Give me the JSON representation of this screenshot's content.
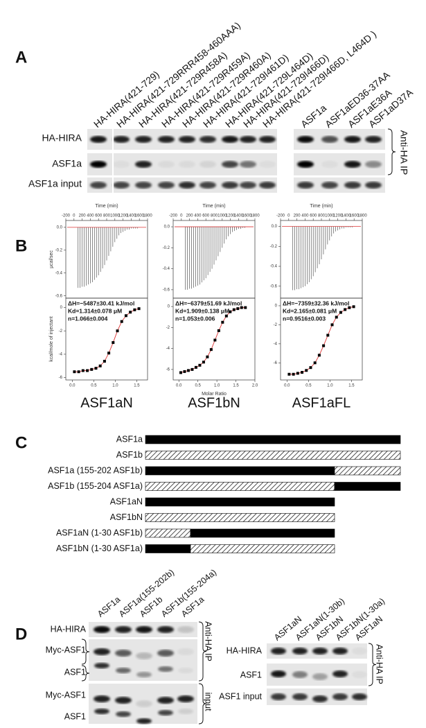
{
  "panels": {
    "A": {
      "label": "A",
      "left_lanes": [
        "HA-HIRA(421-729)",
        "HA-HIRA(421-729RRR458-460AAA)",
        "HA-HIRA(421-729R458A)",
        "HA-HIRA(421-729R459A)",
        "HA-HIRA(421-729R460A)",
        "HA-HIRA(421-729I461D)",
        "HA-HIRA(421-729L464D)",
        "HA-HIRA(421-729I466D)",
        "HA-HIRA(421-729I466D, L464D )"
      ],
      "right_lanes": [
        "ASF1a",
        "ASF1aED36-37AA",
        "ASF1aE36A",
        "ASF1aD37A"
      ],
      "rows": [
        "HA-HIRA",
        "ASF1a",
        "ASF1a input"
      ],
      "side": "Anti-HA IP"
    },
    "B": {
      "label": "B",
      "time_axis": "Time (min)",
      "ucal_axis": "µcal/sec",
      "kcal_axis": "kcal/mole of injectant",
      "ratio_axis": "Molar Ratio",
      "experiments": [
        {
          "name": "ASF1aN",
          "dH": "ΔH=−5487±30.41 kJ/mol",
          "kd": "Kd=1.314±0.078 μM",
          "n": "n=1.066±0.004",
          "time_lim": [
            -200,
            1800
          ],
          "time_ticks": [
            -200,
            0,
            200,
            400,
            600,
            800,
            1000,
            1200,
            1400,
            1600,
            1800
          ],
          "ucal_lim": [
            -0.62,
            0.06
          ],
          "ucal_ticks": [
            {
              "value": 0,
              "label": "0.0"
            },
            {
              "value": -0.2,
              "label": "-0.2"
            },
            {
              "value": -0.4,
              "label": "-0.4"
            },
            {
              "value": -0.6,
              "label": "-0.6"
            }
          ],
          "kcal_lim": [
            -6.2,
            0.8
          ],
          "kcal_ticks": [
            0,
            -2,
            -4,
            -6
          ],
          "ratio_lim": [
            -0.15,
            1.75
          ],
          "ratio_ticks": [
            {
              "value": 0,
              "label": "0.0"
            },
            {
              "value": 0.5,
              "label": "0.5"
            },
            {
              "value": 1,
              "label": "1.0"
            },
            {
              "value": 1.5,
              "label": "1.5"
            }
          ],
          "peaks": {
            "t": [
              100,
              150,
              200,
              250,
              300,
              350,
              400,
              450,
              500,
              550,
              600,
              650,
              700,
              750,
              800,
              850,
              900,
              950,
              1000,
              1050,
              1100,
              1150,
              1200,
              1250,
              1300,
              1350,
              1400,
              1450,
              1500,
              1550
            ],
            "v": [
              -0.53,
              -0.53,
              -0.52,
              -0.52,
              -0.51,
              -0.5,
              -0.49,
              -0.48,
              -0.46,
              -0.44,
              -0.42,
              -0.39,
              -0.36,
              -0.33,
              -0.29,
              -0.25,
              -0.21,
              -0.17,
              -0.13,
              -0.1,
              -0.07,
              -0.05,
              -0.04,
              -0.03,
              -0.02,
              -0.02,
              -0.01,
              -0.01,
              -0.01,
              -0.01
            ]
          },
          "fit": {
            "x": [
              0.05,
              0.15,
              0.25,
              0.35,
              0.45,
              0.55,
              0.65,
              0.75,
              0.85,
              0.95,
              1.05,
              1.15,
              1.25,
              1.35,
              1.45,
              1.55
            ],
            "y": [
              -5.5,
              -5.5,
              -5.4,
              -5.4,
              -5.3,
              -5.2,
              -5.0,
              -4.6,
              -3.9,
              -3.0,
              -2.0,
              -1.2,
              -0.7,
              -0.4,
              -0.2,
              -0.1
            ]
          }
        },
        {
          "name": "ASF1bN",
          "dH": "ΔH=−6379±51.69 kJ/mol",
          "kd": "Kd=1.909±0.138 μM",
          "n": "n=1.053±0.006",
          "time_lim": [
            -200,
            1800
          ],
          "time_ticks": [
            -200,
            0,
            200,
            400,
            600,
            800,
            1000,
            1200,
            1400,
            1600,
            1800
          ],
          "ucal_lim": [
            -0.68,
            0.06
          ],
          "ucal_ticks": [
            {
              "value": 0,
              "label": "0.0"
            },
            {
              "value": -0.2,
              "label": "-0.2"
            },
            {
              "value": -0.4,
              "label": "-0.4"
            },
            {
              "value": -0.6,
              "label": "-0.6"
            }
          ],
          "kcal_lim": [
            -7,
            0.8
          ],
          "kcal_ticks": [
            0,
            -2,
            -4,
            -6
          ],
          "ratio_lim": [
            -0.15,
            2.0
          ],
          "ratio_ticks": [
            {
              "value": 0,
              "label": "0.0"
            },
            {
              "value": 0.5,
              "label": "0.5"
            },
            {
              "value": 1,
              "label": "1.0"
            },
            {
              "value": 1.5,
              "label": "1.5"
            },
            {
              "value": 2,
              "label": "2.0"
            }
          ],
          "peaks": {
            "t": [
              100,
              150,
              200,
              250,
              300,
              350,
              400,
              450,
              500,
              550,
              600,
              650,
              700,
              750,
              800,
              850,
              900,
              950,
              1000,
              1050,
              1100,
              1150,
              1200,
              1250,
              1300,
              1350,
              1400,
              1450,
              1500,
              1550
            ],
            "v": [
              -0.6,
              -0.6,
              -0.59,
              -0.59,
              -0.58,
              -0.57,
              -0.56,
              -0.55,
              -0.53,
              -0.51,
              -0.49,
              -0.46,
              -0.43,
              -0.4,
              -0.36,
              -0.32,
              -0.28,
              -0.24,
              -0.2,
              -0.16,
              -0.12,
              -0.09,
              -0.07,
              -0.05,
              -0.04,
              -0.03,
              -0.02,
              -0.02,
              -0.01,
              -0.01
            ]
          },
          "fit": {
            "x": [
              0.05,
              0.15,
              0.25,
              0.35,
              0.45,
              0.55,
              0.65,
              0.75,
              0.85,
              0.95,
              1.05,
              1.15,
              1.25,
              1.35,
              1.45,
              1.55,
              1.65,
              1.75
            ],
            "y": [
              -6.3,
              -6.2,
              -6.1,
              -6.0,
              -5.8,
              -5.6,
              -5.3,
              -4.8,
              -4.1,
              -3.2,
              -2.3,
              -1.5,
              -0.9,
              -0.5,
              -0.3,
              -0.2,
              -0.1,
              -0.1
            ]
          }
        },
        {
          "name": "ASF1aFL",
          "dH": "ΔH=−7359±32.36 kJ/mol",
          "kd": "Kd=2.165±0.081 μM",
          "n": "n=0.9516±0.003",
          "time_lim": [
            -200,
            1800
          ],
          "time_ticks": [
            -200,
            0,
            200,
            400,
            600,
            800,
            1000,
            1200,
            1400,
            1600,
            1800
          ],
          "ucal_lim": [
            -0.72,
            0.06
          ],
          "ucal_ticks": [
            {
              "value": 0,
              "label": "0.0"
            },
            {
              "value": -0.2,
              "label": "-0.2"
            },
            {
              "value": -0.4,
              "label": "-0.4"
            },
            {
              "value": -0.6,
              "label": "-0.6"
            }
          ],
          "kcal_lim": [
            -7.8,
            0.8
          ],
          "kcal_ticks": [
            0,
            -2,
            -4,
            -6
          ],
          "ratio_lim": [
            -0.15,
            1.75
          ],
          "ratio_ticks": [
            {
              "value": 0,
              "label": "0.0"
            },
            {
              "value": 0.5,
              "label": "0.5"
            },
            {
              "value": 1,
              "label": "1.0"
            },
            {
              "value": 1.5,
              "label": "1.5"
            }
          ],
          "peaks": {
            "t": [
              100,
              150,
              200,
              250,
              300,
              350,
              400,
              450,
              500,
              550,
              600,
              650,
              700,
              750,
              800,
              850,
              900,
              950,
              1000,
              1050,
              1100,
              1150,
              1200,
              1250,
              1300,
              1350,
              1400,
              1450,
              1500,
              1550
            ],
            "v": [
              -0.64,
              -0.64,
              -0.63,
              -0.63,
              -0.62,
              -0.61,
              -0.6,
              -0.58,
              -0.56,
              -0.53,
              -0.5,
              -0.46,
              -0.42,
              -0.38,
              -0.33,
              -0.28,
              -0.23,
              -0.18,
              -0.14,
              -0.1,
              -0.07,
              -0.05,
              -0.04,
              -0.03,
              -0.02,
              -0.02,
              -0.01,
              -0.01,
              -0.01,
              -0.01
            ]
          },
          "fit": {
            "x": [
              0.05,
              0.15,
              0.25,
              0.35,
              0.45,
              0.55,
              0.65,
              0.75,
              0.85,
              0.95,
              1.05,
              1.15,
              1.25,
              1.35,
              1.45,
              1.55
            ],
            "y": [
              -7.2,
              -7.2,
              -7.1,
              -7.0,
              -6.8,
              -6.5,
              -6.0,
              -5.2,
              -4.2,
              -3.1,
              -2.0,
              -1.2,
              -0.7,
              -0.4,
              -0.2,
              -0.1
            ]
          }
        }
      ]
    },
    "C": {
      "label": "C",
      "constructs": [
        "ASF1a",
        "ASF1b",
        "ASF1a (155-202 ASF1b)",
        "ASF1b (155-204 ASF1a)",
        "ASF1aN",
        "ASF1bN",
        "ASF1aN (1-30 ASF1b)",
        "ASF1bN (1-30 ASF1a)"
      ]
    },
    "D": {
      "label": "D",
      "left_lanes": [
        "ASF1a",
        "ASF1a(155-202b)",
        "ASF1b",
        "ASF1b(155-204a)",
        "ASF1a"
      ],
      "left_rows": [
        "HA-HIRA",
        "Myc-ASF1",
        "ASF1",
        "Myc-ASF1",
        "ASF1"
      ],
      "left_sides": [
        "Anti-HA IP",
        "input"
      ],
      "right_lanes": [
        "ASF1aN",
        "ASF1aN(1-30b)",
        "ASF1bN",
        "ASF1bN(1-30a)",
        "ASF1aN"
      ],
      "right_rows": [
        "HA-HIRA",
        "ASF1",
        "ASF1 input"
      ],
      "right_side": "Anti-HA IP"
    }
  }
}
